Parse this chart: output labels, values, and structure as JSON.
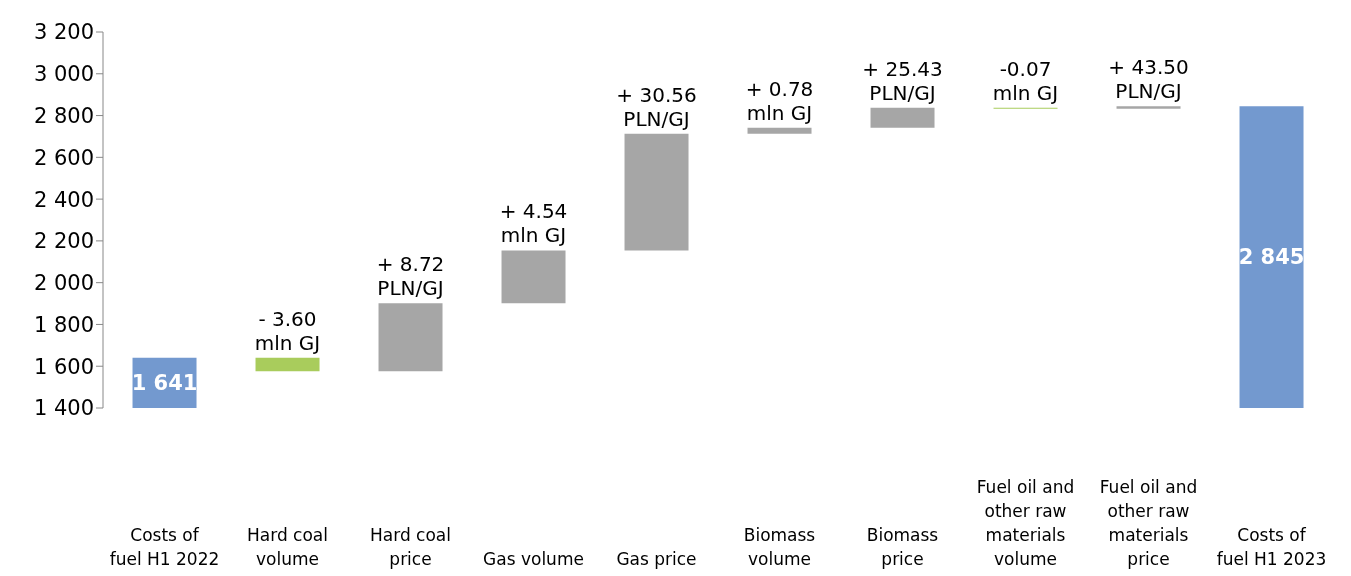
{
  "chart_data": {
    "type": "bar",
    "categories": [
      "Costs of fuel H1 2022",
      "Hard coal volume",
      "Hard coal price",
      "Gas volume",
      "Gas price",
      "Biomass volume",
      "Biomass price",
      "Fuel oil and other raw materials volume",
      "Fuel oil and other raw materials price",
      "Costs of fuel H1 2023"
    ],
    "values": [
      1641,
      -65,
      325,
      253,
      559,
      29,
      95,
      -5,
      13,
      2845
    ],
    "base": [
      null,
      1641,
      1576,
      1901,
      2154,
      2713,
      2742,
      2837,
      2832,
      null
    ],
    "colors": [
      "#7399cf",
      "#a9cc5c",
      "#a6a6a6",
      "#a6a6a6",
      "#a6a6a6",
      "#a6a6a6",
      "#a6a6a6",
      "#a9cc5c",
      "#a6a6a6",
      "#7399cf"
    ],
    "value_labels": [
      "1 641",
      null,
      null,
      null,
      null,
      null,
      null,
      null,
      null,
      "2 845"
    ],
    "annotations": [
      {
        "text": "- 3.60\nmln GJ",
        "x": "Hard coal volume",
        "y": 1641
      },
      {
        "text": "+ 8.72\nPLN/GJ",
        "x": "Hard coal price",
        "y": 1901
      },
      {
        "text": "+ 4.54\nmln GJ",
        "x": "Gas volume",
        "y": 2154
      },
      {
        "text": "+ 30.56\nPLN/GJ",
        "x": "Gas price",
        "y": 2713
      },
      {
        "text": "+ 0.78\nmln GJ",
        "x": "Biomass volume",
        "y": 2742
      },
      {
        "text": "+ 25.43\nPLN/GJ",
        "x": "Biomass price",
        "y": 2837
      },
      {
        "text": "-0.07\nmln GJ",
        "x": "Fuel oil and other raw materials volume",
        "y": 2837
      },
      {
        "text": "+ 43.50\nPLN/GJ",
        "x": "Fuel oil and other raw materials price",
        "y": 2845
      }
    ],
    "ylim": [
      1400,
      3200
    ],
    "yticks": [
      {
        "value": 1400,
        "label": "1 400"
      },
      {
        "value": 1600,
        "label": "1 600"
      },
      {
        "value": 1800,
        "label": "1 800"
      },
      {
        "value": 2000,
        "label": "2 000"
      },
      {
        "value": 2200,
        "label": "2 200"
      },
      {
        "value": 2400,
        "label": "2 400"
      },
      {
        "value": 2600,
        "label": "2 600"
      },
      {
        "value": 2800,
        "label": "2 800"
      },
      {
        "value": 3000,
        "label": "3 000"
      },
      {
        "value": 3200,
        "label": "3 200"
      }
    ],
    "grid": false,
    "legend": false
  }
}
